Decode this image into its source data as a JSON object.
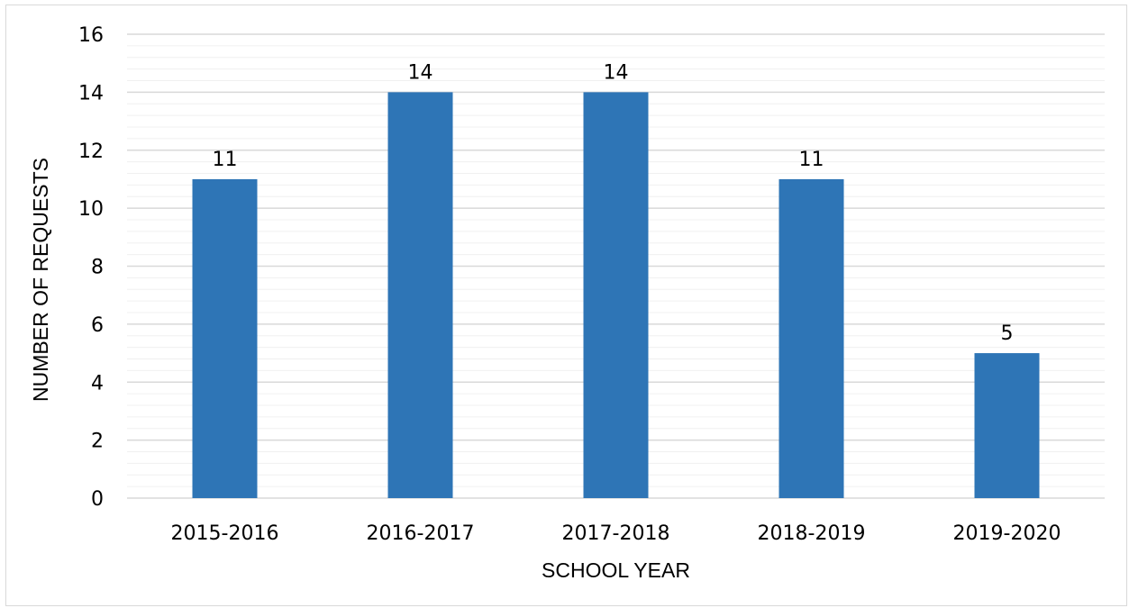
{
  "chart_data": {
    "type": "bar",
    "title": "",
    "xlabel": "SCHOOL YEAR",
    "ylabel": "NUMBER OF REQUESTS",
    "categories": [
      "2015-2016",
      "2016-2017",
      "2017-2018",
      "2018-2019",
      "2019-2020"
    ],
    "values": [
      11,
      14,
      14,
      11,
      5
    ],
    "data_labels": [
      "11",
      "14",
      "14",
      "11",
      "5"
    ],
    "ylim": [
      0,
      16
    ],
    "y_ticks": [
      0,
      2,
      4,
      6,
      8,
      10,
      12,
      14,
      16
    ],
    "y_minor_step": 0.4,
    "grid": true,
    "legend": "none",
    "colors": {
      "bar": "#2E75B6",
      "major_grid": "#d9d9d9",
      "minor_grid": "#f0f0f0",
      "frame": "#d9d9d9"
    }
  }
}
